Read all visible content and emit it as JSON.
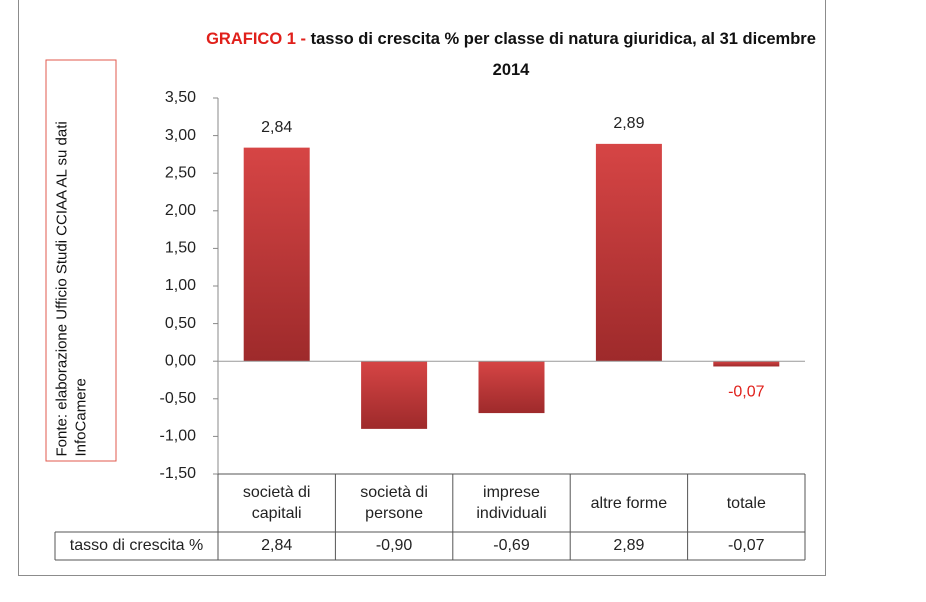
{
  "chart_data": {
    "type": "bar",
    "title_prefix": "GRAFICO 1 -",
    "title": "tasso di crescita % per classe di natura giuridica, al 31 dicembre 2014",
    "source": "Fonte: elaborazione Ufficio Studi CCIAA AL su dati InfoCamere",
    "categories": [
      "società di capitali",
      "società di persone",
      "imprese individuali",
      "altre forme",
      "totale"
    ],
    "values": [
      2.84,
      -0.9,
      -0.69,
      2.89,
      -0.07
    ],
    "value_labels": [
      "2,84",
      null,
      null,
      "2,89",
      "-0,07"
    ],
    "color": "#c0393b",
    "ylim": [
      -1.5,
      3.5
    ],
    "yticks": [
      {
        "value": 3.5,
        "label": "3,50"
      },
      {
        "value": 3.0,
        "label": "3,00"
      },
      {
        "value": 2.5,
        "label": "2,50"
      },
      {
        "value": 2.0,
        "label": "2,00"
      },
      {
        "value": 1.5,
        "label": "1,50"
      },
      {
        "value": 1.0,
        "label": "1,00"
      },
      {
        "value": 0.5,
        "label": "0,50"
      },
      {
        "value": 0,
        "label": "0,00"
      },
      {
        "value": -0.5,
        "label": "-0,50"
      },
      {
        "value": -1.0,
        "label": "-1,00"
      },
      {
        "value": -1.5,
        "label": "-1,50"
      }
    ],
    "data_table": {
      "row_label": "tasso di crescita %",
      "cells": [
        "2,84",
        "-0,90",
        "-0,69",
        "2,89",
        "-0,07"
      ]
    }
  }
}
